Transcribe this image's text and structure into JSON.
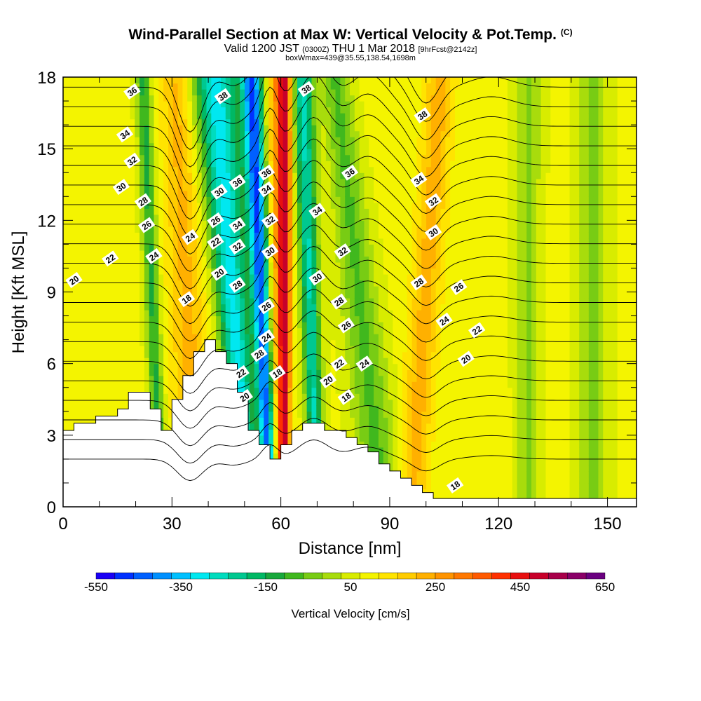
{
  "title": "Wind-Parallel Section at Max W: Vertical Velocity & Pot.Temp.",
  "copyright": "(C)",
  "subtitle": {
    "valid": "Valid 1200 JST",
    "zulu": "(0300Z)",
    "date": "THU 1 Mar 2018",
    "forecast": "[9hrFcst@2142z]"
  },
  "box_info": "boxWmax=439@35.55,138.54,1698m",
  "chart_data": {
    "type": "heatmap",
    "xlabel": "Distance [nm]",
    "ylabel": "Height [Kft MSL]",
    "xlim": [
      0,
      158
    ],
    "ylim": [
      0,
      18
    ],
    "x_ticks": [
      "0",
      "30",
      "60",
      "90",
      "120",
      "150"
    ],
    "y_ticks": [
      "0",
      "3",
      "6",
      "9",
      "12",
      "15",
      "18"
    ],
    "colorbar": {
      "label": "Vertical Velocity [cm/s]",
      "tick_labels": [
        "-550",
        "-350",
        "-150",
        "50",
        "250",
        "450",
        "650"
      ],
      "range": [
        -600,
        650
      ],
      "colors": [
        "#1a00f5",
        "#0030ff",
        "#0060ff",
        "#0090ff",
        "#00c0ff",
        "#00e8f0",
        "#00dcbe",
        "#00c890",
        "#00b864",
        "#18a83c",
        "#40b81e",
        "#78cc14",
        "#a8dc0c",
        "#d8ec00",
        "#f4f400",
        "#ffe400",
        "#ffcc00",
        "#ffb000",
        "#ff9400",
        "#ff7800",
        "#ff5a00",
        "#ff3000",
        "#e81010",
        "#c8002a",
        "#a8004a",
        "#8a0068",
        "#6a0080"
      ]
    },
    "velocity_bands": [
      {
        "x_top": 22,
        "x_bottom": 27,
        "w_top": 2,
        "w_bottom": 2,
        "value_cm_s": -150
      },
      {
        "x_top": 31,
        "x_bottom": 37,
        "w_top": 4,
        "w_bottom": 6,
        "value_cm_s": 200
      },
      {
        "x_top": 42,
        "x_bottom": 51,
        "w_top": 6,
        "w_bottom": 3,
        "value_cm_s": -350
      },
      {
        "x_top": 52,
        "x_bottom": 57,
        "w_top": 3,
        "w_bottom": 2,
        "value_cm_s": -500
      },
      {
        "x_top": 58,
        "x_bottom": 59,
        "w_top": 3,
        "w_bottom": 2,
        "value_cm_s": 200
      },
      {
        "x_top": 61,
        "x_bottom": 61,
        "w_top": 2,
        "w_bottom": 1.5,
        "value_cm_s": 460
      },
      {
        "x_top": 66,
        "x_bottom": 70,
        "w_top": 3,
        "w_bottom": 2,
        "value_cm_s": -280
      },
      {
        "x_top": 75,
        "x_bottom": 88,
        "w_top": 4,
        "w_bottom": 6,
        "value_cm_s": -100
      },
      {
        "x_top": 104,
        "x_bottom": 96,
        "w_top": 4,
        "w_bottom": 4,
        "value_cm_s": 210
      },
      {
        "x_top": 128,
        "x_bottom": 128,
        "w_top": 4,
        "w_bottom": 3,
        "value_cm_s": -50
      },
      {
        "x_top": 146,
        "x_bottom": 146,
        "w_top": 4,
        "w_bottom": 4,
        "value_cm_s": -60
      },
      {
        "x_top": 118,
        "x_bottom": 115,
        "w_top": 3,
        "w_bottom": 3,
        "value_cm_s": 70
      }
    ],
    "terrain": [
      [
        0,
        3.2
      ],
      [
        3,
        3.2
      ],
      [
        3,
        3.5
      ],
      [
        9,
        3.5
      ],
      [
        9,
        3.8
      ],
      [
        15,
        3.8
      ],
      [
        15,
        4.1
      ],
      [
        18,
        4.1
      ],
      [
        18,
        4.8
      ],
      [
        24,
        4.8
      ],
      [
        24,
        4.1
      ],
      [
        27,
        4.1
      ],
      [
        27,
        3.2
      ],
      [
        30,
        3.2
      ],
      [
        30,
        4.5
      ],
      [
        33,
        4.5
      ],
      [
        33,
        5.5
      ],
      [
        36,
        5.5
      ],
      [
        36,
        6.5
      ],
      [
        39,
        6.5
      ],
      [
        39,
        7.0
      ],
      [
        42,
        7.0
      ],
      [
        42,
        6.5
      ],
      [
        45,
        6.5
      ],
      [
        45,
        6.0
      ],
      [
        48,
        6.0
      ],
      [
        48,
        4.8
      ],
      [
        51,
        4.8
      ],
      [
        51,
        3.2
      ],
      [
        54,
        3.2
      ],
      [
        54,
        2.6
      ],
      [
        57,
        2.6
      ],
      [
        57,
        2.0
      ],
      [
        60,
        2.0
      ],
      [
        60,
        2.6
      ],
      [
        63,
        2.6
      ],
      [
        63,
        3.2
      ],
      [
        66,
        3.2
      ],
      [
        66,
        3.5
      ],
      [
        72,
        3.5
      ],
      [
        72,
        3.2
      ],
      [
        78,
        3.2
      ],
      [
        78,
        2.9
      ],
      [
        81,
        2.9
      ],
      [
        81,
        2.6
      ],
      [
        84,
        2.6
      ],
      [
        84,
        2.3
      ],
      [
        87,
        2.3
      ],
      [
        87,
        1.8
      ],
      [
        90,
        1.8
      ],
      [
        90,
        1.5
      ],
      [
        93,
        1.5
      ],
      [
        93,
        1.2
      ],
      [
        96,
        1.2
      ],
      [
        96,
        0.9
      ],
      [
        99,
        0.9
      ],
      [
        99,
        0.6
      ],
      [
        102,
        0.6
      ],
      [
        102,
        0.35
      ],
      [
        158,
        0.35
      ]
    ],
    "contour_levels": [
      18,
      19,
      20,
      21,
      22,
      23,
      24,
      25,
      26,
      27,
      28,
      29,
      30,
      31,
      32,
      33,
      34,
      35,
      36,
      37,
      38
    ],
    "contour_labels": [
      {
        "text": "36",
        "x": 19,
        "y": 17.4
      },
      {
        "text": "34",
        "x": 17,
        "y": 15.6
      },
      {
        "text": "32",
        "x": 19,
        "y": 14.5
      },
      {
        "text": "30",
        "x": 16,
        "y": 13.4
      },
      {
        "text": "28",
        "x": 22,
        "y": 12.8
      },
      {
        "text": "26",
        "x": 23,
        "y": 11.8
      },
      {
        "text": "24",
        "x": 25,
        "y": 10.5
      },
      {
        "text": "22",
        "x": 13,
        "y": 10.4
      },
      {
        "text": "20",
        "x": 3,
        "y": 9.5
      },
      {
        "text": "18",
        "x": 34,
        "y": 8.7
      },
      {
        "text": "24",
        "x": 35,
        "y": 11.3
      },
      {
        "text": "30",
        "x": 43,
        "y": 13.2
      },
      {
        "text": "26",
        "x": 42,
        "y": 12.0
      },
      {
        "text": "22",
        "x": 42,
        "y": 11.1
      },
      {
        "text": "20",
        "x": 43,
        "y": 9.8
      },
      {
        "text": "38",
        "x": 44,
        "y": 17.2
      },
      {
        "text": "36",
        "x": 48,
        "y": 13.6
      },
      {
        "text": "34",
        "x": 48,
        "y": 11.8
      },
      {
        "text": "32",
        "x": 48,
        "y": 10.9
      },
      {
        "text": "28",
        "x": 48,
        "y": 9.3
      },
      {
        "text": "28",
        "x": 54,
        "y": 6.4
      },
      {
        "text": "22",
        "x": 49,
        "y": 5.6
      },
      {
        "text": "20",
        "x": 50,
        "y": 4.6
      },
      {
        "text": "36",
        "x": 56,
        "y": 14.0
      },
      {
        "text": "34",
        "x": 56,
        "y": 13.3
      },
      {
        "text": "32",
        "x": 57,
        "y": 12.0
      },
      {
        "text": "30",
        "x": 57,
        "y": 10.7
      },
      {
        "text": "26",
        "x": 56,
        "y": 8.4
      },
      {
        "text": "24",
        "x": 56,
        "y": 7.1
      },
      {
        "text": "18",
        "x": 59,
        "y": 5.6
      },
      {
        "text": "38",
        "x": 67,
        "y": 17.5
      },
      {
        "text": "36",
        "x": 79,
        "y": 14.0
      },
      {
        "text": "34",
        "x": 70,
        "y": 12.4
      },
      {
        "text": "32",
        "x": 77,
        "y": 10.7
      },
      {
        "text": "30",
        "x": 70,
        "y": 9.6
      },
      {
        "text": "28",
        "x": 76,
        "y": 8.6
      },
      {
        "text": "26",
        "x": 78,
        "y": 7.6
      },
      {
        "text": "24",
        "x": 83,
        "y": 6.0
      },
      {
        "text": "22",
        "x": 76,
        "y": 6.0
      },
      {
        "text": "20",
        "x": 73,
        "y": 5.3
      },
      {
        "text": "18",
        "x": 78,
        "y": 4.6
      },
      {
        "text": "38",
        "x": 99,
        "y": 16.4
      },
      {
        "text": "34",
        "x": 98,
        "y": 13.7
      },
      {
        "text": "32",
        "x": 102,
        "y": 12.8
      },
      {
        "text": "30",
        "x": 102,
        "y": 11.5
      },
      {
        "text": "28",
        "x": 98,
        "y": 9.4
      },
      {
        "text": "26",
        "x": 109,
        "y": 9.2
      },
      {
        "text": "24",
        "x": 105,
        "y": 7.8
      },
      {
        "text": "22",
        "x": 114,
        "y": 7.4
      },
      {
        "text": "20",
        "x": 111,
        "y": 6.2
      },
      {
        "text": "18",
        "x": 108,
        "y": 0.9
      }
    ]
  }
}
